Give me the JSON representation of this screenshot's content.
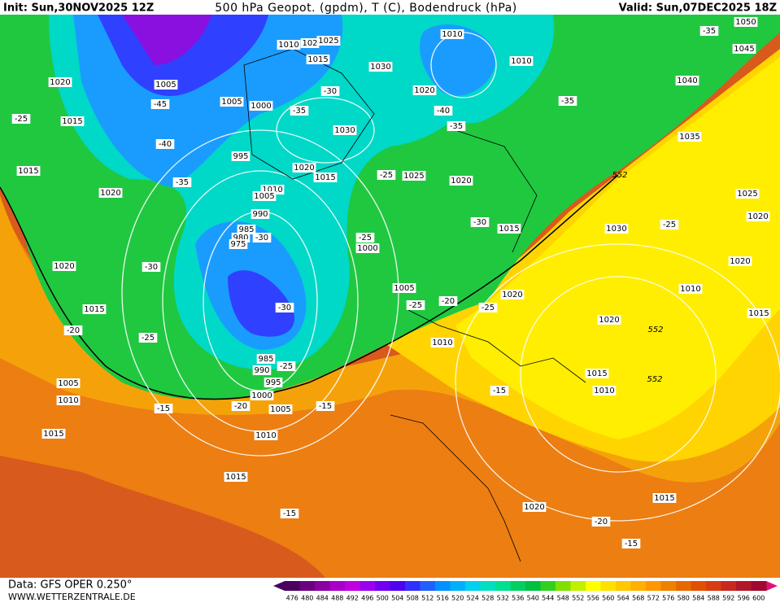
{
  "header": {
    "init": "Init: Sun,30NOV2025 12Z",
    "title": "500 hPa Geopot. (gpdm), T (C), Bodendruck (hPa)",
    "valid": "Valid: Sun,07DEC2025 18Z"
  },
  "footer": {
    "data": "Data: GFS OPER 0.250°",
    "site": "WWW.WETTERZENTRALE.DE"
  },
  "scale": [
    "476",
    "480",
    "484",
    "488",
    "492",
    "496",
    "500",
    "504",
    "508",
    "512",
    "516",
    "520",
    "524",
    "528",
    "532",
    "536",
    "540",
    "544",
    "548",
    "552",
    "556",
    "560",
    "564",
    "568",
    "572",
    "576",
    "580",
    "584",
    "588",
    "592",
    "596",
    "600"
  ],
  "labels": {
    "isobars": [
      "1010",
      "102",
      "1025",
      "1015",
      "1030",
      "1010",
      "1010",
      "1050",
      "1045",
      "1040",
      "1035",
      "1020",
      "1005",
      "1005",
      "1000",
      "1015",
      "1020",
      "1030",
      "995",
      "1020",
      "1015",
      "1025",
      "1020",
      "1015",
      "1020",
      "1010",
      "1005",
      "990",
      "985",
      "980",
      "975",
      "1030",
      "1025",
      "1020",
      "1015",
      "1000",
      "1020",
      "1020",
      "1005",
      "1020",
      "1010",
      "1015",
      "1015",
      "1020",
      "1010",
      "985",
      "990",
      "995",
      "1000",
      "1005",
      "1015",
      "1010",
      "1005",
      "1010",
      "1015",
      "1010",
      "1015",
      "1015",
      "1020"
    ],
    "temperatures": [
      "-35",
      "-30",
      "-45",
      "-35",
      "-25",
      "-40",
      "-35",
      "-35",
      "-40",
      "-35",
      "-25",
      "-30",
      "-25",
      "-25",
      "-30",
      "-30",
      "-30",
      "-25",
      "-20",
      "-25",
      "-20",
      "-25",
      "-25",
      "-20",
      "-15",
      "-15",
      "-15",
      "-15",
      "-20",
      "-15"
    ],
    "heights": [
      "552",
      "552",
      "552"
    ]
  }
}
